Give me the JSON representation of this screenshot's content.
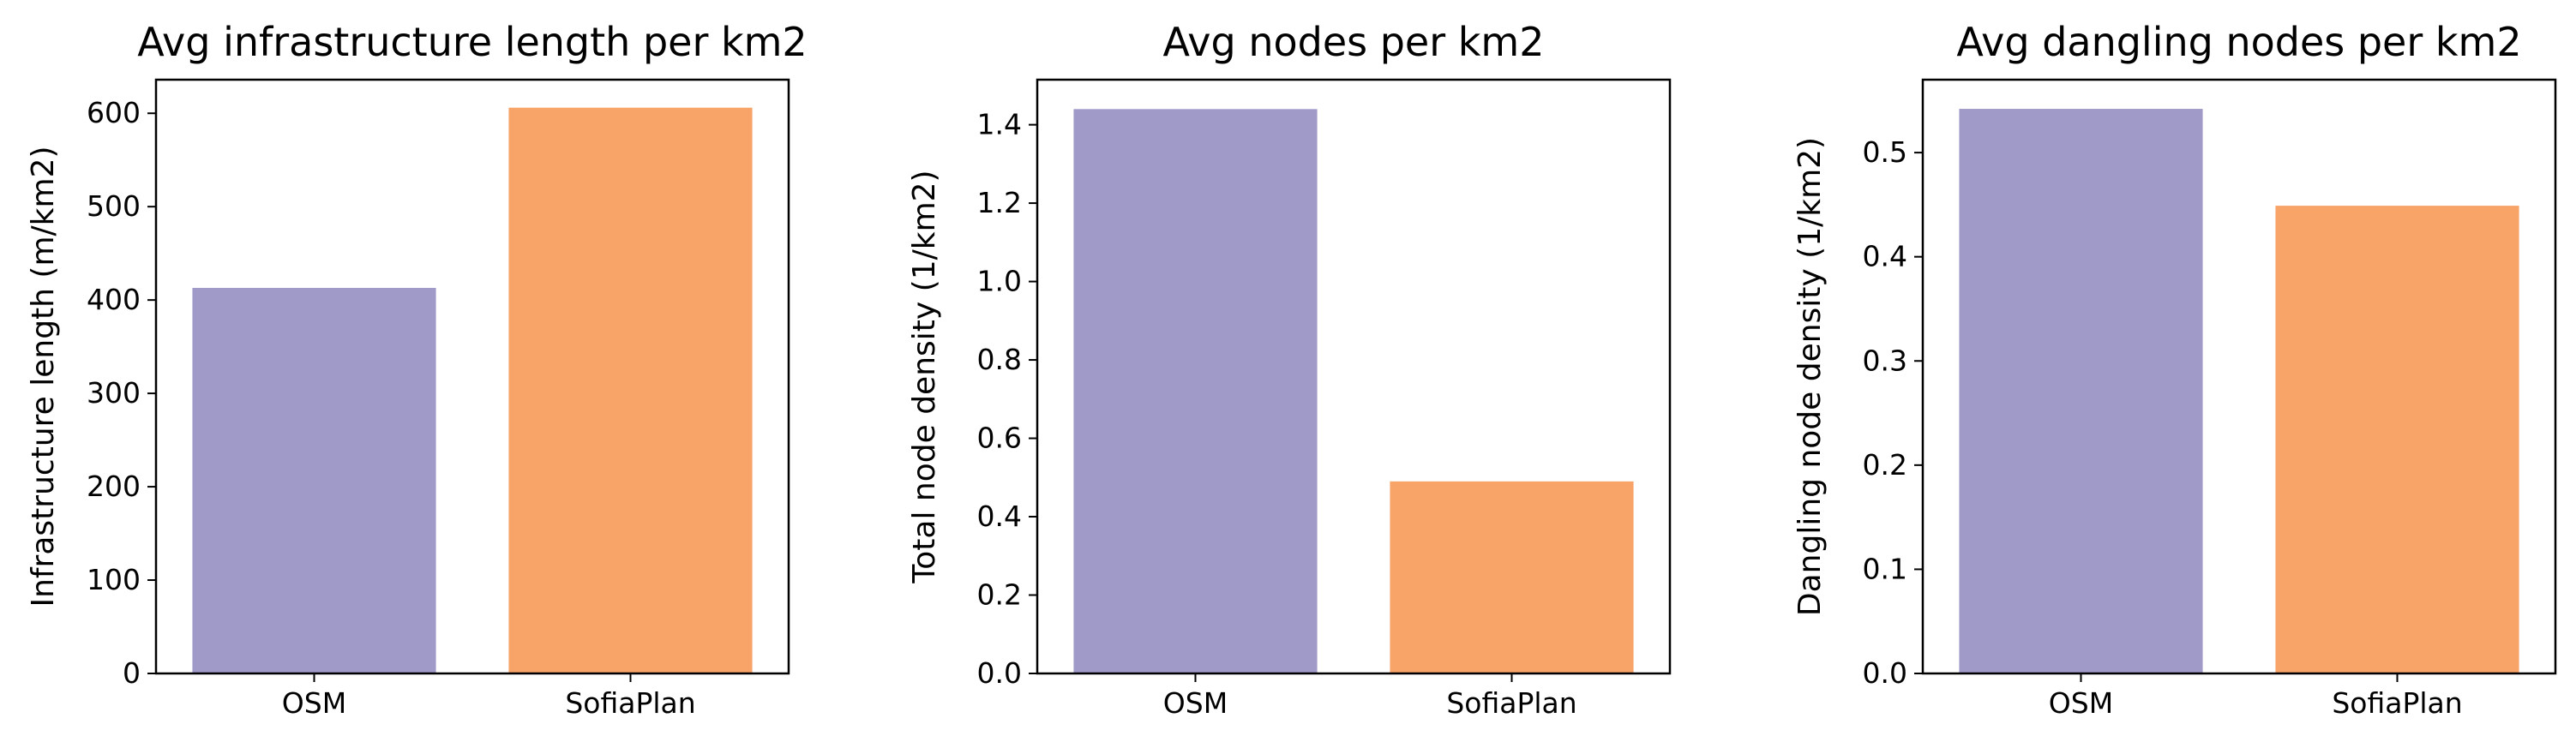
{
  "colors": {
    "OSM": "#a09ac9",
    "SofiaPlan": "#f8a367"
  },
  "chart_data": [
    {
      "type": "bar",
      "title": "Avg infrastructure length per km2",
      "xlabel": "",
      "ylabel": "Infrastructure length (m/km2)",
      "categories": [
        "OSM",
        "SofiaPlan"
      ],
      "values": [
        413,
        606
      ],
      "ylim": [
        0,
        636
      ],
      "yticks": [
        0,
        100,
        200,
        300,
        400,
        500,
        600
      ],
      "ytick_labels": [
        "0",
        "100",
        "200",
        "300",
        "400",
        "500",
        "600"
      ],
      "grid": false
    },
    {
      "type": "bar",
      "title": "Avg nodes per km2",
      "xlabel": "",
      "ylabel": "Total node density (1/km2)",
      "categories": [
        "OSM",
        "SofiaPlan"
      ],
      "values": [
        1.44,
        0.49
      ],
      "ylim": [
        0,
        1.515
      ],
      "yticks": [
        0,
        0.2,
        0.4,
        0.6,
        0.8,
        1.0,
        1.2,
        1.4
      ],
      "ytick_labels": [
        "0.0",
        "0.2",
        "0.4",
        "0.6",
        "0.8",
        "1.0",
        "1.2",
        "1.4"
      ],
      "grid": false
    },
    {
      "type": "bar",
      "title": "Avg dangling nodes per km2",
      "xlabel": "",
      "ylabel": "Dangling node density (1/km2)",
      "categories": [
        "OSM",
        "SofiaPlan"
      ],
      "values": [
        0.542,
        0.449
      ],
      "ylim": [
        0,
        0.57
      ],
      "yticks": [
        0,
        0.1,
        0.2,
        0.3,
        0.4,
        0.5
      ],
      "ytick_labels": [
        "0.0",
        "0.1",
        "0.2",
        "0.3",
        "0.4",
        "0.5"
      ],
      "grid": false
    }
  ]
}
